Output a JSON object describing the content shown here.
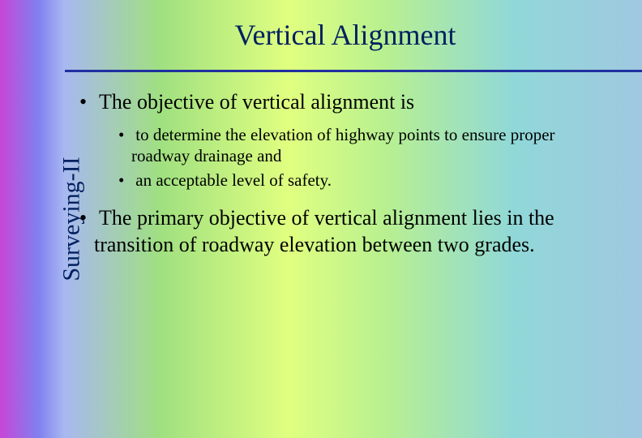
{
  "sidebar_label": "Surveying-II",
  "title": "Vertical Alignment",
  "bullets": {
    "b1": "The objective of vertical alignment is",
    "b1_sub1": " to determine the elevation of highway points to ensure proper roadway drainage and",
    "b1_sub2": " an acceptable level of safety.",
    "b2": "The primary objective of vertical alignment lies in the transition of roadway elevation between two grades."
  },
  "colors": {
    "title_color": "#002060",
    "rule_color": "#2030a0",
    "text_color": "#000000"
  }
}
